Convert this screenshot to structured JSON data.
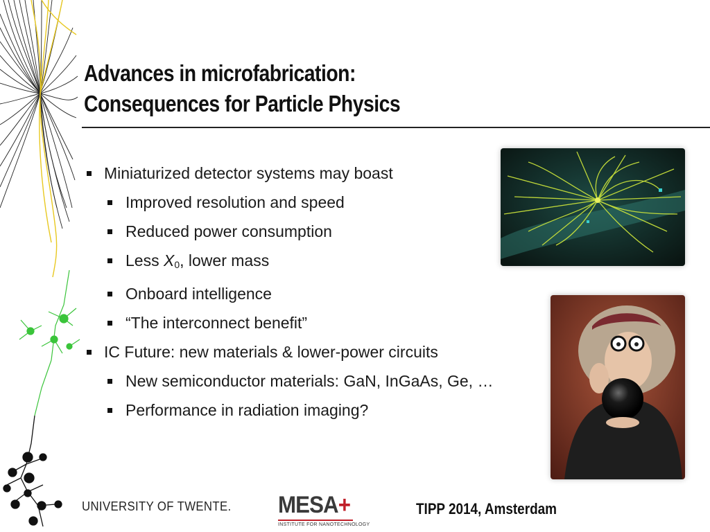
{
  "slide": {
    "title_line1": "Advances in microfabrication:",
    "title_line2": "Consequences for Particle Physics",
    "bullets": {
      "b1": "Miniaturized detector systems may boast",
      "b1_1": "Improved resolution and speed",
      "b1_2": "Reduced power consumption",
      "b1_3_prefix": "Less ",
      "b1_3_symbol": "X",
      "b1_3_sub": "0",
      "b1_3_suffix": ", lower mass",
      "b1_4": "Onboard intelligence",
      "b1_5": "“The interconnect benefit”",
      "b2": "IC Future: new materials & lower-power circuits",
      "b2_1": "New semiconductor materials: GaN, InGaAs, Ge, …",
      "b2_2": "Performance in radiation imaging?"
    }
  },
  "footer": {
    "university_logo_text": "UNIVERSITY OF TWENTE.",
    "mesa_logo_name": "MESA",
    "mesa_logo_plus": "+",
    "mesa_logo_subtitle": "INSTITUTE FOR NANOTECHNOLOGY",
    "event": "TIPP 2014, Amsterdam"
  },
  "images": {
    "collision": "particle-collision-event-image",
    "fortune": "fortune-teller-crystal-ball-image",
    "left_art": "neuron-and-fiber-line-art"
  },
  "colors": {
    "accent_red": "#c0202a",
    "track_green": "#c8e03a",
    "neuron_green": "#3ac43a"
  }
}
